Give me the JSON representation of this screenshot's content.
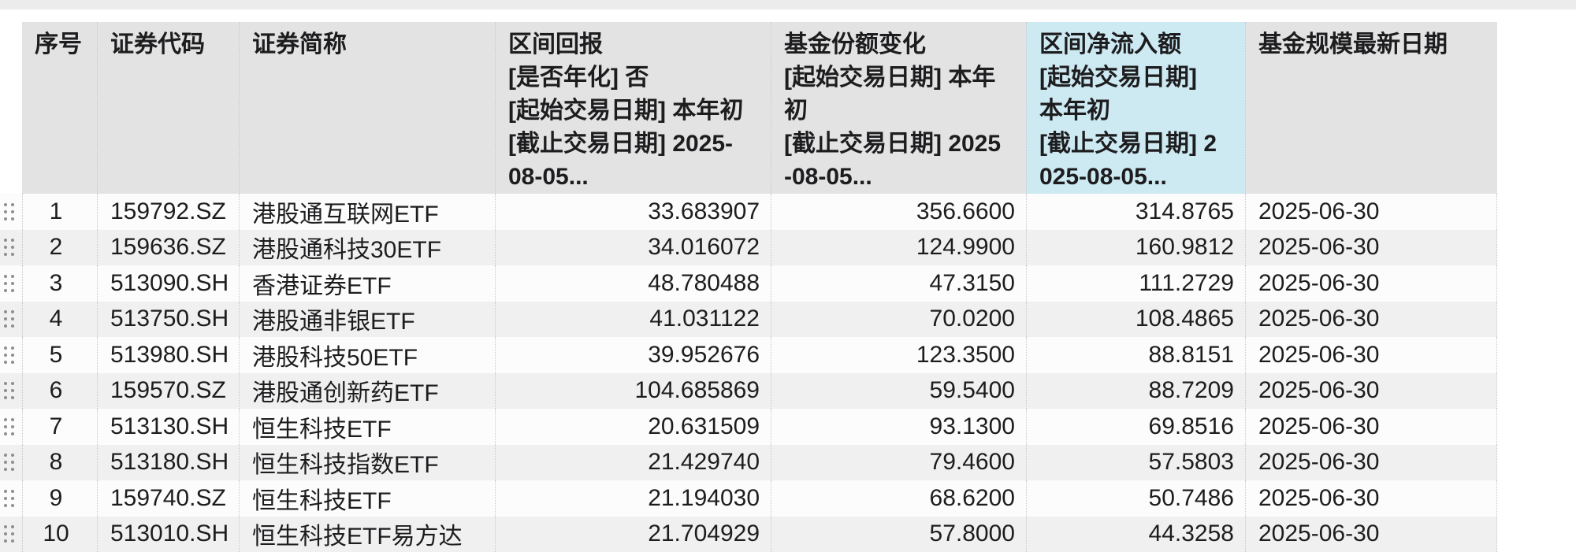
{
  "colors": {
    "header_bg": "#e3e3e3",
    "highlight_bg": "#cde9f2",
    "row_odd": "#fcfcfc",
    "row_even": "#f0f0f0",
    "strip": "#ececec",
    "border": "#c8c8c8",
    "text": "#1d1d1f",
    "dot": "#8e8e8e"
  },
  "table": {
    "columns": [
      {
        "key": "index",
        "label": "序号"
      },
      {
        "key": "code",
        "label": "证券代码"
      },
      {
        "key": "name",
        "label": "证券简称"
      },
      {
        "key": "return",
        "label": "区间回报\n[是否年化] 否\n[起始交易日期] 本年初\n[截止交易日期] 2025-\n08-05..."
      },
      {
        "key": "share_change",
        "label": "基金份额变化\n[起始交易日期] 本年\n初\n[截止交易日期] 2025\n-08-05..."
      },
      {
        "key": "net_inflow",
        "label": "区间净流入额\n[起始交易日期]\n本年初\n[截止交易日期] 2\n025-08-05...",
        "highlighted": true
      },
      {
        "key": "scale_date",
        "label": "基金规模最新日期"
      }
    ],
    "rows": [
      {
        "index": "1",
        "code": "159792.SZ",
        "name": "港股通互联网ETF",
        "return": "33.683907",
        "share_change": "356.6600",
        "net_inflow": "314.8765",
        "scale_date": "2025-06-30"
      },
      {
        "index": "2",
        "code": "159636.SZ",
        "name": "港股通科技30ETF",
        "return": "34.016072",
        "share_change": "124.9900",
        "net_inflow": "160.9812",
        "scale_date": "2025-06-30"
      },
      {
        "index": "3",
        "code": "513090.SH",
        "name": "香港证券ETF",
        "return": "48.780488",
        "share_change": "47.3150",
        "net_inflow": "111.2729",
        "scale_date": "2025-06-30"
      },
      {
        "index": "4",
        "code": "513750.SH",
        "name": "港股通非银ETF",
        "return": "41.031122",
        "share_change": "70.0200",
        "net_inflow": "108.4865",
        "scale_date": "2025-06-30"
      },
      {
        "index": "5",
        "code": "513980.SH",
        "name": "港股科技50ETF",
        "return": "39.952676",
        "share_change": "123.3500",
        "net_inflow": "88.8151",
        "scale_date": "2025-06-30"
      },
      {
        "index": "6",
        "code": "159570.SZ",
        "name": "港股通创新药ETF",
        "return": "104.685869",
        "share_change": "59.5400",
        "net_inflow": "88.7209",
        "scale_date": "2025-06-30"
      },
      {
        "index": "7",
        "code": "513130.SH",
        "name": "恒生科技ETF",
        "return": "20.631509",
        "share_change": "93.1300",
        "net_inflow": "69.8516",
        "scale_date": "2025-06-30"
      },
      {
        "index": "8",
        "code": "513180.SH",
        "name": "恒生科技指数ETF",
        "return": "21.429740",
        "share_change": "79.4600",
        "net_inflow": "57.5803",
        "scale_date": "2025-06-30"
      },
      {
        "index": "9",
        "code": "159740.SZ",
        "name": "恒生科技ETF",
        "return": "21.194030",
        "share_change": "68.6200",
        "net_inflow": "50.7486",
        "scale_date": "2025-06-30"
      },
      {
        "index": "10",
        "code": "513010.SH",
        "name": "恒生科技ETF易方达",
        "return": "21.704929",
        "share_change": "57.8000",
        "net_inflow": "44.3258",
        "scale_date": "2025-06-30"
      }
    ]
  }
}
